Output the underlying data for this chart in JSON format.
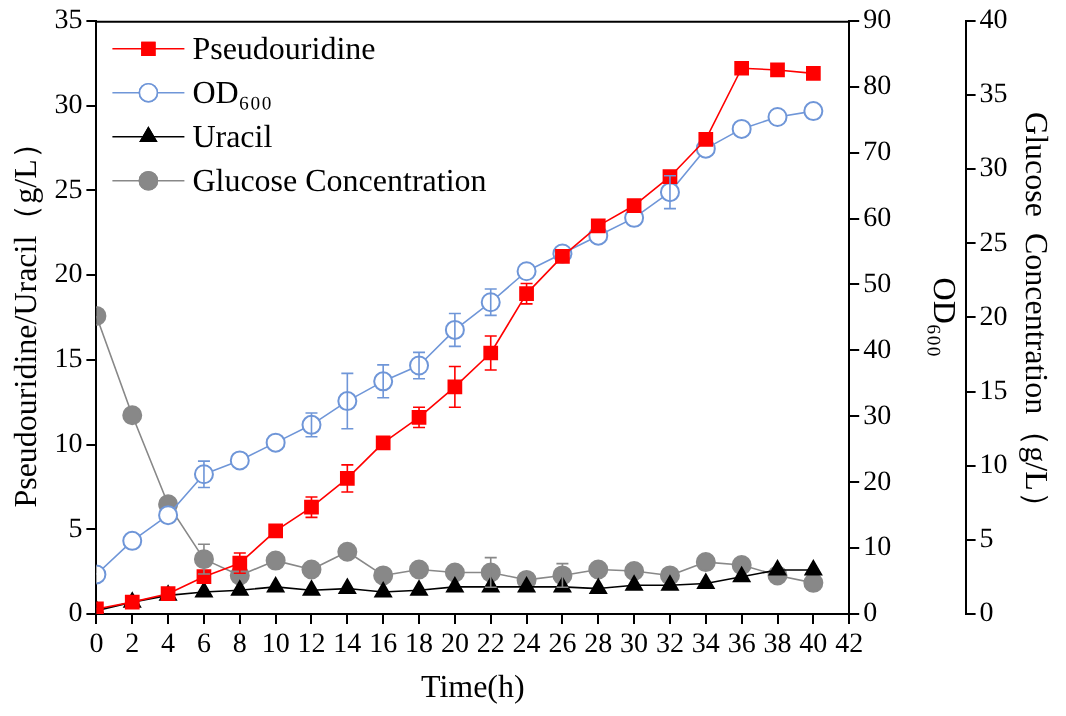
{
  "chart_data": {
    "type": "line",
    "xlabel": "Time(h)",
    "ylabel": "Pseudouridine/Uracil（g/L）",
    "y2label": "OD₆₀₀",
    "y3label": "Glucose  Concentration（g/L）",
    "x": [
      0,
      2,
      4,
      6,
      8,
      10,
      12,
      14,
      16,
      18,
      20,
      22,
      24,
      26,
      28,
      30,
      32,
      34,
      36,
      38,
      40
    ],
    "xlim": [
      0,
      42
    ],
    "xticks": [
      0,
      2,
      4,
      6,
      8,
      10,
      12,
      14,
      16,
      18,
      20,
      22,
      24,
      26,
      28,
      30,
      32,
      34,
      36,
      38,
      40,
      42
    ],
    "ylim": [
      0,
      35
    ],
    "yticks": [
      0,
      5,
      10,
      15,
      20,
      25,
      30,
      35
    ],
    "y2lim": [
      0,
      90
    ],
    "y2ticks": [
      0,
      10,
      20,
      30,
      40,
      50,
      60,
      70,
      80,
      90
    ],
    "y3lim": [
      0,
      40
    ],
    "y3ticks": [
      0,
      5,
      10,
      15,
      20,
      25,
      30,
      35,
      40
    ],
    "grid": false,
    "legend": "top left",
    "line_style": "solid",
    "series": [
      {
        "name": "Pseudouridine",
        "color": "#ff0000",
        "marker": "square",
        "axis": "y",
        "values": [
          0.3,
          0.7,
          1.2,
          2.2,
          3.0,
          4.9,
          6.3,
          8.0,
          10.1,
          11.6,
          13.4,
          15.4,
          18.9,
          21.1,
          22.9,
          24.1,
          25.8,
          28.0,
          32.2,
          32.1,
          31.9
        ],
        "errors": [
          null,
          null,
          null,
          null,
          0.6,
          null,
          0.6,
          0.8,
          null,
          0.6,
          1.2,
          1.0,
          0.6,
          null,
          null,
          null,
          null,
          null,
          null,
          null,
          null
        ]
      },
      {
        "name": "OD₆₀₀",
        "color": "#6f96d8",
        "marker": "circle_open",
        "axis": "y2",
        "values": [
          6.0,
          11.1,
          15.0,
          21.2,
          23.3,
          26.0,
          28.7,
          32.3,
          35.3,
          37.7,
          43.1,
          47.3,
          52.0,
          54.7,
          57.4,
          60.1,
          64.0,
          70.6,
          73.6,
          75.4,
          76.3
        ],
        "errors": [
          null,
          null,
          null,
          2.0,
          null,
          null,
          1.8,
          4.2,
          2.5,
          2.0,
          2.5,
          2.0,
          null,
          null,
          null,
          null,
          2.5,
          null,
          null,
          null,
          null
        ]
      },
      {
        "name": "Uracil",
        "color": "#000000",
        "marker": "triangle",
        "axis": "y",
        "values": [
          0.2,
          0.7,
          1.1,
          1.3,
          1.4,
          1.6,
          1.4,
          1.5,
          1.3,
          1.4,
          1.6,
          1.6,
          1.6,
          1.6,
          1.5,
          1.7,
          1.7,
          1.8,
          2.2,
          2.6,
          2.6
        ]
      },
      {
        "name": "Glucose Concentration",
        "color": "#888888",
        "marker": "circle",
        "axis": "y3",
        "values": [
          20.1,
          13.4,
          7.4,
          3.7,
          2.6,
          3.6,
          3.0,
          4.2,
          2.6,
          3.0,
          2.8,
          2.8,
          2.3,
          2.6,
          3.0,
          2.9,
          2.6,
          3.5,
          3.3,
          2.6,
          2.1
        ],
        "errors": [
          null,
          null,
          null,
          1.0,
          null,
          null,
          null,
          null,
          null,
          null,
          null,
          1.0,
          null,
          0.8,
          null,
          null,
          null,
          null,
          null,
          null,
          null
        ]
      }
    ]
  }
}
